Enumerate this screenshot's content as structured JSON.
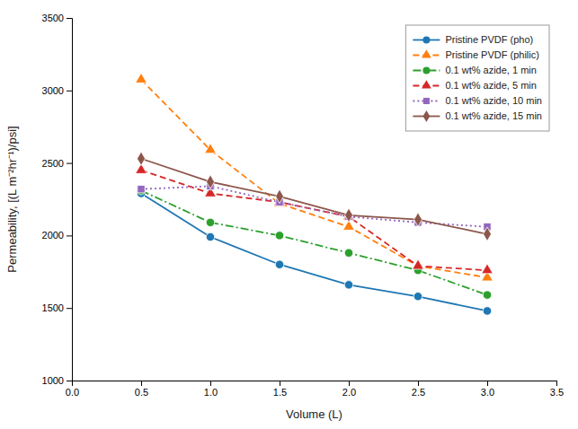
{
  "chart_data": {
    "type": "line",
    "x": [
      0.5,
      1.0,
      1.5,
      2.0,
      2.5,
      3.0
    ],
    "series": [
      {
        "name": "Pristine PVDF (pho)",
        "marker": "circle",
        "line_style": "solid",
        "values": [
          2290,
          1990,
          1800,
          1660,
          1580,
          1480
        ]
      },
      {
        "name": "Pristine PVDF (philic)",
        "marker": "triangle",
        "line_style": "dashed",
        "values": [
          3075,
          2590,
          2220,
          2060,
          1790,
          1710
        ]
      },
      {
        "name": "0.1 wt% azide, 1 min",
        "marker": "circle",
        "line_style": "dashdot",
        "values": [
          2310,
          2090,
          2000,
          1880,
          1760,
          1590
        ]
      },
      {
        "name": "0.1 wt% azide, 5 min",
        "marker": "triangle",
        "line_style": "dashed",
        "values": [
          2450,
          2290,
          2230,
          2130,
          1790,
          1760
        ]
      },
      {
        "name": "0.1 wt% azide, 10 min",
        "marker": "square",
        "line_style": "dotted",
        "values": [
          2320,
          2340,
          2230,
          2130,
          2090,
          2060
        ]
      },
      {
        "name": "0.1 wt% azide, 15 min",
        "marker": "diamond",
        "line_style": "solid",
        "values": [
          2530,
          2370,
          2270,
          2140,
          2110,
          2010
        ]
      }
    ],
    "x_label": "Volume (L)",
    "y_label": "Permeability, [(L m⁻²hr⁻¹)/psi]",
    "xlim": [
      0.0,
      3.5
    ],
    "ylim": [
      1000,
      3500
    ],
    "xticks": [
      {
        "value": 0.0,
        "label": "0.0"
      },
      0.5,
      {
        "value": 1.0,
        "label": "1.0"
      },
      1.5,
      {
        "value": 2.0,
        "label": "2.0"
      },
      2.5,
      {
        "value": 3.0,
        "label": "3.0"
      },
      3.5
    ],
    "yticks": [
      1000,
      1500,
      2000,
      2500,
      3000,
      3500
    ],
    "legend": "upper right",
    "grid": false
  }
}
